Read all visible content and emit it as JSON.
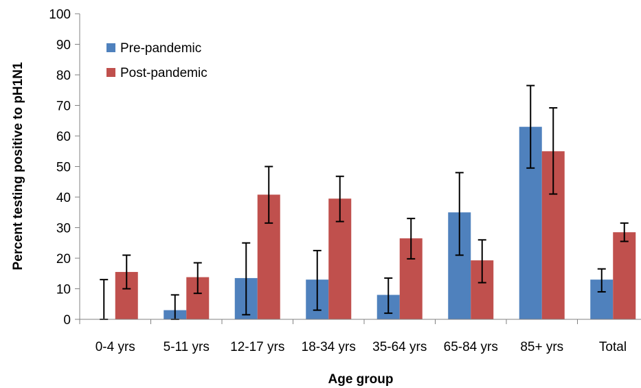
{
  "chart_data": {
    "type": "bar",
    "title": "",
    "xlabel": "Age group",
    "ylabel": "Percent testing positive to pH1N1",
    "ylim": [
      0,
      100
    ],
    "yticks": [
      0,
      10,
      20,
      30,
      40,
      50,
      60,
      70,
      80,
      90,
      100
    ],
    "ytick_labels": [
      "0",
      "10",
      "20",
      "30",
      "40",
      "50",
      "60",
      "70",
      "80",
      "90",
      "100"
    ],
    "grid": false,
    "legend_position": "top-left",
    "categories": [
      "0-4 yrs",
      "5-11 yrs",
      "12-17 yrs",
      "18-34 yrs",
      "35-64 yrs",
      "65-84 yrs",
      "85+ yrs",
      "Total"
    ],
    "series": [
      {
        "name": "Pre-pandemic",
        "color": "#4F81BD",
        "values": [
          0,
          3,
          13.5,
          13,
          8,
          35,
          63,
          13
        ],
        "error_low": [
          0,
          0,
          1.5,
          3,
          2,
          21,
          49.5,
          9
        ],
        "error_high": [
          13,
          8,
          25,
          22.5,
          13.5,
          48,
          76.5,
          16.5
        ]
      },
      {
        "name": "Post-pandemic",
        "color": "#C0504D",
        "values": [
          15.5,
          13.8,
          40.8,
          39.5,
          26.5,
          19.3,
          55,
          28.5
        ],
        "error_low": [
          10,
          8.5,
          31.5,
          32,
          19.8,
          12,
          41,
          25.5
        ],
        "error_high": [
          21,
          18.5,
          50,
          46.8,
          33,
          26,
          69.2,
          31.5
        ]
      }
    ]
  }
}
